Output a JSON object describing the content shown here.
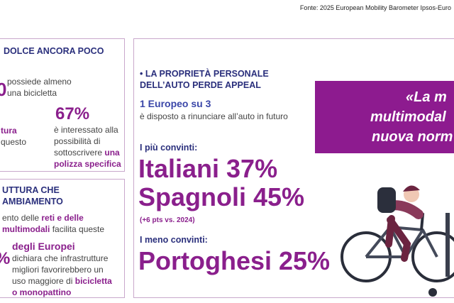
{
  "source": "Fonte: 2025 European Mobility Barometer Ipsos-Euro",
  "left_top": {
    "title": "DOLCE ANCORA POCO",
    "big_number": "0",
    "text1_a": "possiede almeno",
    "text1_b": "una bicicletta",
    "label_frag_a": "tura",
    "label_frag_b": "questo",
    "stat": "67%",
    "stat_text_a": "è interessato alla",
    "stat_text_b": "possibilità di",
    "stat_text_c": "sottoscrivere",
    "stat_emph": "una",
    "stat_emph2": "polizza specifica"
  },
  "left_bottom": {
    "title_a": "UTTURA CHE",
    "title_b": "AMBIAMENTO",
    "line1_a": "ento delle",
    "line1_b": "reti e delle",
    "line2_a": "multimodali",
    "line2_b": "facilita queste",
    "big_number": "%",
    "head": "degli Europei",
    "t1": "dichiara che infrastrutture",
    "t2": "migliori favorirebbero un",
    "t3": "uso maggiore di",
    "t3e": "bicicletta",
    "t4": "o monopattino"
  },
  "middle": {
    "title_a": "• LA PROPRIETÀ PERSONALE",
    "title_b": "DELL’AUTO PERDE APPEAL",
    "stat_head": "1 Europeo su 3",
    "stat_text": "è disposto a rinunciare all’auto in futuro",
    "convinced_label": "I più convinti:",
    "italians": "Italiani 37%",
    "spanish": "Spagnoli 45%",
    "note": "(+6 pts vs. 2024)",
    "least_label": "I meno convinti:",
    "portuguese": "Portoghesi 25%"
  },
  "quote": {
    "line1": "«La m",
    "line2": "multimodal",
    "line3": "nuova norm"
  },
  "colors": {
    "navy": "#2a2f7c",
    "purple": "#8a1f8c",
    "quote_bg": "#8d1b8f"
  }
}
